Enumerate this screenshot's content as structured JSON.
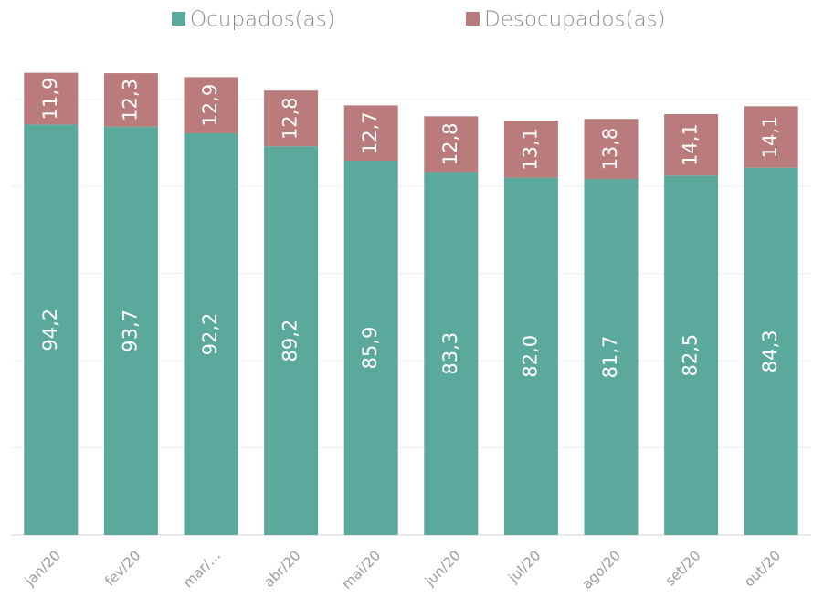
{
  "chart_data": {
    "type": "stacked_bar",
    "categories": [
      "jan/20",
      "fev/20",
      "mar/…",
      "abr/20",
      "mai/20",
      "jun/20",
      "jul/20",
      "ago/20",
      "set/20",
      "out/20"
    ],
    "series": [
      {
        "name": "Ocupados(as)",
        "color": "#5ba89d",
        "values": [
          94.2,
          93.7,
          92.2,
          89.2,
          85.9,
          83.3,
          82.0,
          81.7,
          82.5,
          84.3
        ],
        "value_labels": [
          "94,2",
          "93,7",
          "92,2",
          "89,2",
          "85,9",
          "83,3",
          "82,0",
          "81,7",
          "82,5",
          "84,3"
        ]
      },
      {
        "name": "Desocupados(as)",
        "color": "#b97b7b",
        "values": [
          11.9,
          12.3,
          12.9,
          12.8,
          12.7,
          12.8,
          13.1,
          13.8,
          14.1,
          14.1
        ],
        "value_labels": [
          "11,9",
          "12,3",
          "12,9",
          "12,8",
          "12,7",
          "12,8",
          "13,1",
          "13,8",
          "14,1",
          "14,1"
        ]
      }
    ],
    "ylim": [
      0,
      110
    ],
    "yticks": [
      0,
      20,
      40,
      60,
      80,
      100
    ],
    "grid": true
  }
}
